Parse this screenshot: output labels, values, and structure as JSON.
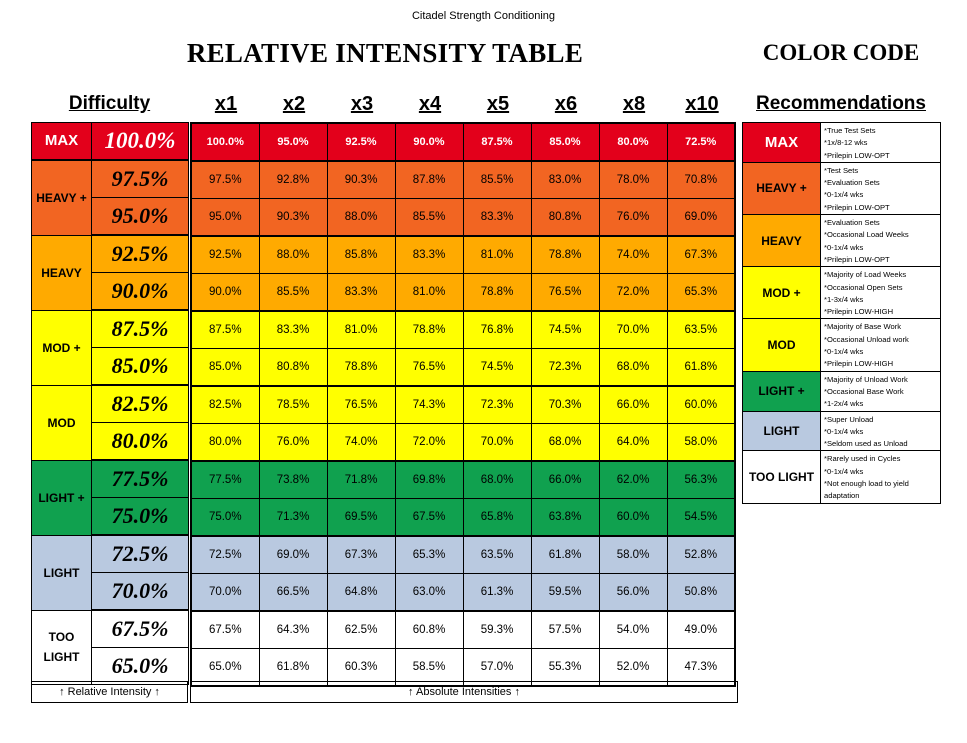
{
  "header": {
    "org": "Citadel Strength Conditioning",
    "title": "RELATIVE INTENSITY TABLE",
    "color_code": "COLOR CODE"
  },
  "columns": {
    "difficulty": "Difficulty",
    "reps": [
      "x1",
      "x2",
      "x3",
      "x4",
      "x5",
      "x6",
      "x8",
      "x10"
    ],
    "recommendations": "Recommendations"
  },
  "colors": {
    "max": "#e3001b",
    "heavy_plus": "#f26522",
    "heavy": "#ffaa00",
    "mod_plus": "#ffff00",
    "mod": "#ffff00",
    "light_plus": "#10a14f",
    "light": "#b9c9e0",
    "too_light": "#ffffff"
  },
  "groups": [
    {
      "label": "MAX",
      "color": "#e3001b",
      "rows": [
        {
          "rel": "100.0%",
          "vals": [
            "100.0%",
            "95.0%",
            "92.5%",
            "90.0%",
            "87.5%",
            "85.0%",
            "80.0%",
            "72.5%"
          ]
        }
      ],
      "notes": [
        "*True Test Sets",
        "*1x/8-12 wks",
        "*Prilepin LOW-OPT"
      ]
    },
    {
      "label": "HEAVY +",
      "color": "#f26522",
      "rows": [
        {
          "rel": "97.5%",
          "vals": [
            "97.5%",
            "92.8%",
            "90.3%",
            "87.8%",
            "85.5%",
            "83.0%",
            "78.0%",
            "70.8%"
          ]
        },
        {
          "rel": "95.0%",
          "vals": [
            "95.0%",
            "90.3%",
            "88.0%",
            "85.5%",
            "83.3%",
            "80.8%",
            "76.0%",
            "69.0%"
          ]
        }
      ],
      "notes": [
        "*Test Sets",
        "*Evaluation Sets",
        "*0-1x/4 wks",
        "*Prilepin LOW-OPT"
      ]
    },
    {
      "label": "HEAVY",
      "color": "#ffaa00",
      "rows": [
        {
          "rel": "92.5%",
          "vals": [
            "92.5%",
            "88.0%",
            "85.8%",
            "83.3%",
            "81.0%",
            "78.8%",
            "74.0%",
            "67.3%"
          ]
        },
        {
          "rel": "90.0%",
          "vals": [
            "90.0%",
            "85.5%",
            "83.3%",
            "81.0%",
            "78.8%",
            "76.5%",
            "72.0%",
            "65.3%"
          ]
        }
      ],
      "notes": [
        "*Evaluation Sets",
        "*Occasional Load Weeks",
        "*0-1x/4 wks",
        "*Prilepin LOW-OPT"
      ]
    },
    {
      "label": "MOD +",
      "color": "#ffff00",
      "rows": [
        {
          "rel": "87.5%",
          "vals": [
            "87.5%",
            "83.3%",
            "81.0%",
            "78.8%",
            "76.8%",
            "74.5%",
            "70.0%",
            "63.5%"
          ]
        },
        {
          "rel": "85.0%",
          "vals": [
            "85.0%",
            "80.8%",
            "78.8%",
            "76.5%",
            "74.5%",
            "72.3%",
            "68.0%",
            "61.8%"
          ]
        }
      ],
      "notes": [
        "*Majority of Load Weeks",
        "*Occasional Open Sets",
        "*1-3x/4 wks",
        "*Prilepin LOW-HIGH"
      ]
    },
    {
      "label": "MOD",
      "color": "#ffff00",
      "rows": [
        {
          "rel": "82.5%",
          "vals": [
            "82.5%",
            "78.5%",
            "76.5%",
            "74.3%",
            "72.3%",
            "70.3%",
            "66.0%",
            "60.0%"
          ]
        },
        {
          "rel": "80.0%",
          "vals": [
            "80.0%",
            "76.0%",
            "74.0%",
            "72.0%",
            "70.0%",
            "68.0%",
            "64.0%",
            "58.0%"
          ]
        }
      ],
      "notes": [
        "*Majority of Base Work",
        "*Occasional Unload work",
        "*0-1x/4 wks",
        "*Prilepin LOW-HIGH"
      ]
    },
    {
      "label": "LIGHT +",
      "color": "#10a14f",
      "rows": [
        {
          "rel": "77.5%",
          "vals": [
            "77.5%",
            "73.8%",
            "71.8%",
            "69.8%",
            "68.0%",
            "66.0%",
            "62.0%",
            "56.3%"
          ]
        },
        {
          "rel": "75.0%",
          "vals": [
            "75.0%",
            "71.3%",
            "69.5%",
            "67.5%",
            "65.8%",
            "63.8%",
            "60.0%",
            "54.5%"
          ]
        }
      ],
      "notes": [
        "*Majority of Unload Work",
        "*Occasional Base Work",
        "*1-2x/4 wks"
      ]
    },
    {
      "label": "LIGHT",
      "color": "#b9c9e0",
      "rows": [
        {
          "rel": "72.5%",
          "vals": [
            "72.5%",
            "69.0%",
            "67.3%",
            "65.3%",
            "63.5%",
            "61.8%",
            "58.0%",
            "52.8%"
          ]
        },
        {
          "rel": "70.0%",
          "vals": [
            "70.0%",
            "66.5%",
            "64.8%",
            "63.0%",
            "61.3%",
            "59.5%",
            "56.0%",
            "50.8%"
          ]
        }
      ],
      "notes": [
        "*Super Unload",
        "*0-1x/4 wks",
        "*Seldom used as Unload"
      ]
    },
    {
      "label": "TOO LIGHT",
      "color": "#ffffff",
      "rows": [
        {
          "rel": "67.5%",
          "vals": [
            "67.5%",
            "64.3%",
            "62.5%",
            "60.8%",
            "59.3%",
            "57.5%",
            "54.0%",
            "49.0%"
          ]
        },
        {
          "rel": "65.0%",
          "vals": [
            "65.0%",
            "61.8%",
            "60.3%",
            "58.5%",
            "57.0%",
            "55.3%",
            "52.0%",
            "47.3%"
          ]
        }
      ],
      "notes": [
        "*Rarely used in Cycles",
        "*0-1x/4 wks",
        "*Not enough load to yield",
        "adaptation"
      ]
    }
  ],
  "footer": {
    "relative": "↑ Relative Intensity ↑",
    "absolute": "↑ Absolute Intensities ↑"
  }
}
